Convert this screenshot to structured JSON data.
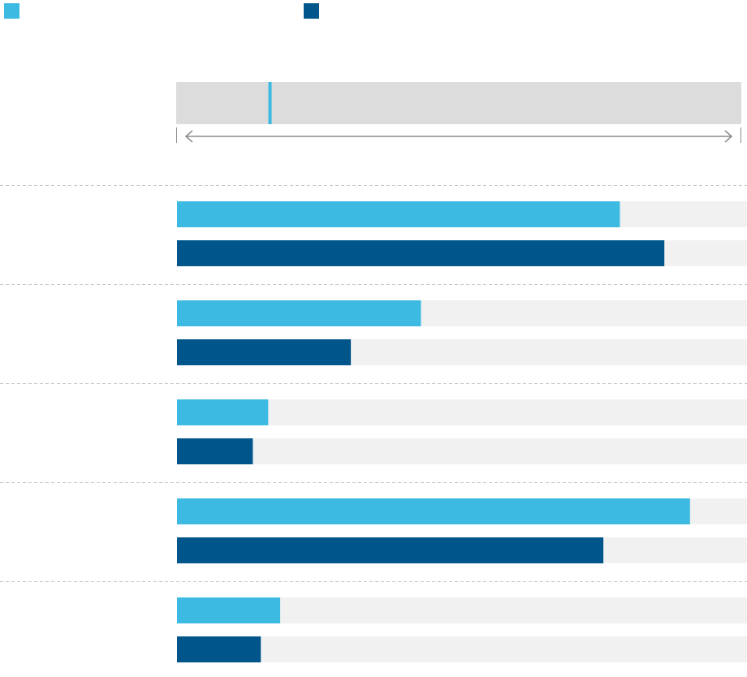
{
  "colors": {
    "series_light": "#3dbae2",
    "series_dark": "#00558a",
    "track": "#f1f1f1",
    "range_box": "#dcdcdc",
    "divider": "#c8c8c8",
    "axis": "#8a8a8a"
  },
  "legend": [
    {
      "label": "",
      "color": "#3dbae2"
    },
    {
      "label": "",
      "color": "#00558a"
    }
  ],
  "scale_indicator": {
    "marker_fraction": 0.166,
    "arrow": "double-headed"
  },
  "chart_data": {
    "type": "bar",
    "orientation": "horizontal",
    "grouped": true,
    "title": "",
    "xlabel": "",
    "ylabel": "",
    "xlim": [
      0,
      1
    ],
    "categories": [
      "",
      "",
      "",
      "",
      ""
    ],
    "series": [
      {
        "color": "#3dbae2",
        "values": [
          0.777,
          0.428,
          0.16,
          0.9,
          0.181
        ]
      },
      {
        "color": "#00558a",
        "values": [
          0.855,
          0.305,
          0.133,
          0.748,
          0.147
        ]
      }
    ],
    "grid": false,
    "legend_position": "top-left"
  }
}
